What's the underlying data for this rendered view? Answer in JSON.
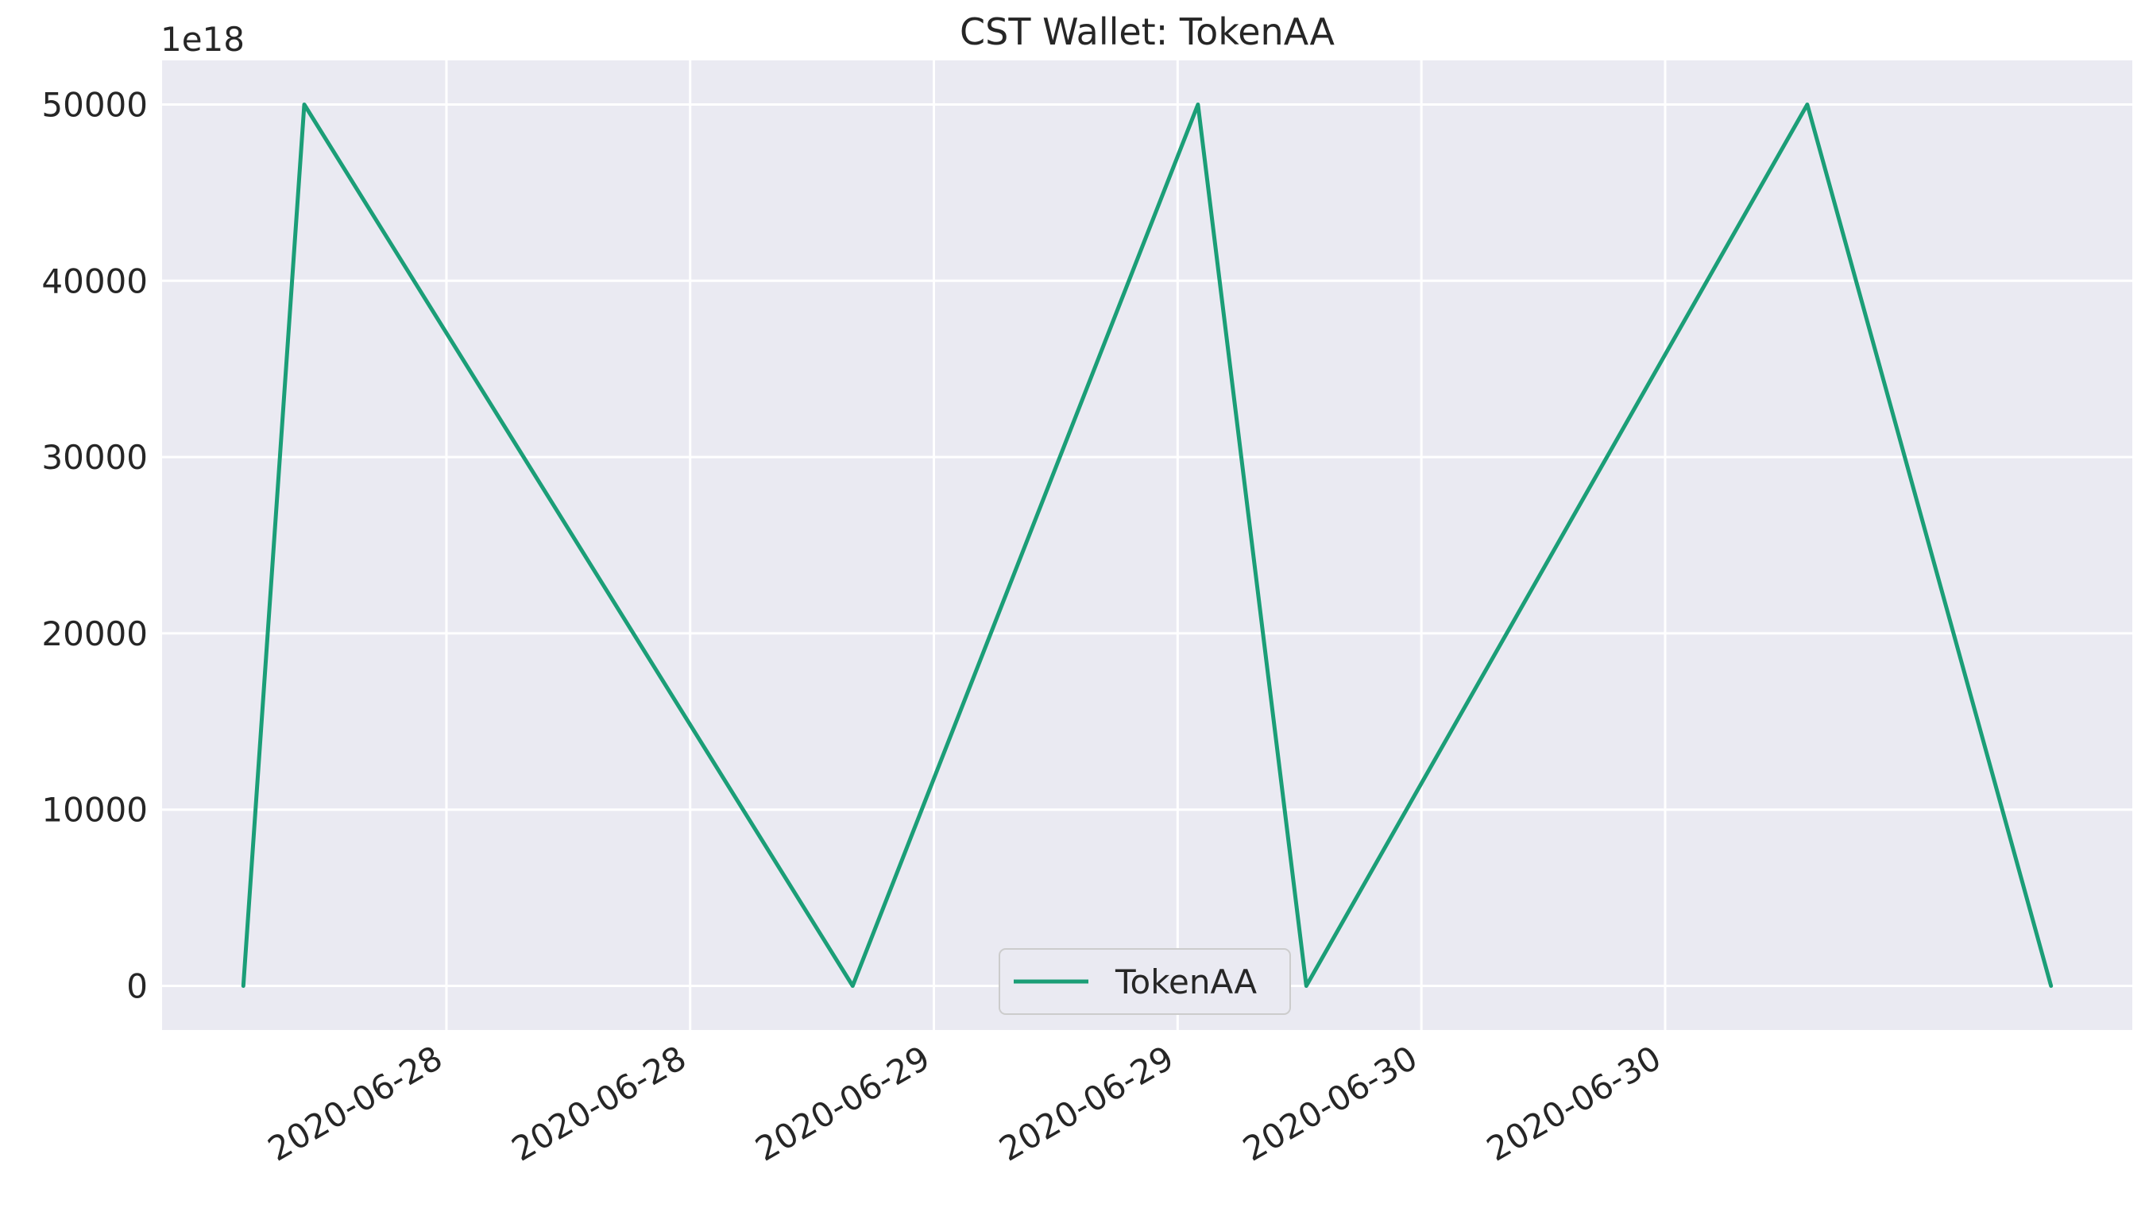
{
  "chart_data": {
    "type": "line",
    "title": "CST Wallet: TokenAA",
    "xlabel": "",
    "ylabel": "",
    "y_offset_label": "1e18",
    "x": [
      "2020-06-27 14:00",
      "2020-06-27 17:00",
      "2020-06-28 20:00",
      "2020-06-29 13:00",
      "2020-06-29 18:20",
      "2020-06-30 19:00",
      "2020-07-01 07:00"
    ],
    "series": [
      {
        "name": "TokenAA",
        "values": [
          0,
          50000,
          0,
          50000,
          0,
          50000,
          0
        ]
      }
    ],
    "y_ticks": [
      0,
      10000,
      20000,
      30000,
      40000,
      50000
    ],
    "y_tick_labels": [
      "0",
      "10000",
      "20000",
      "30000",
      "40000",
      "50000"
    ],
    "x_ticks": [
      "2020-06-28 00:00",
      "2020-06-28 12:00",
      "2020-06-29 00:00",
      "2020-06-29 12:00",
      "2020-06-30 00:00",
      "2020-06-30 12:00"
    ],
    "x_tick_labels": [
      "2020-06-28",
      "2020-06-28",
      "2020-06-29",
      "2020-06-29",
      "2020-06-30",
      "2020-06-30"
    ],
    "xlim": [
      "2020-06-27 10:00",
      "2020-07-01 11:00"
    ],
    "ylim": [
      -2500,
      52500
    ],
    "grid": true,
    "legend_position": "bottom-center",
    "colors": {
      "series": "#1b9e77",
      "plot_background": "#eaeaf2",
      "grid": "#ffffff"
    }
  }
}
